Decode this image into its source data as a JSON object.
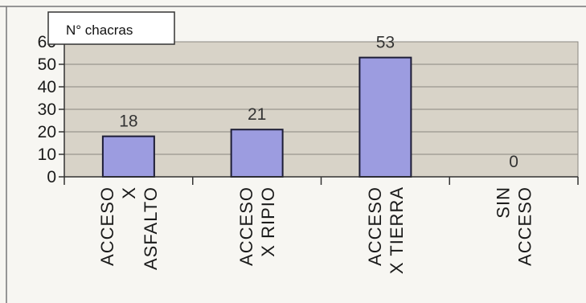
{
  "chart_data": {
    "type": "bar",
    "categories": [
      [
        "ACCESO",
        "X",
        "ASFALTO"
      ],
      [
        "ACCESO",
        "X RIPIO"
      ],
      [
        "ACCESO",
        "X TIERRA"
      ],
      [
        "SIN",
        "ACCESO"
      ]
    ],
    "series": [
      {
        "name": "N° chacras",
        "values": [
          18,
          21,
          53,
          0
        ]
      }
    ],
    "data_labels": [
      "18",
      "21",
      "53",
      "0"
    ],
    "ylim": [
      0,
      60
    ],
    "yticks": [
      "0",
      "10",
      "20",
      "30",
      "40",
      "50",
      "60"
    ],
    "xlabel": "",
    "ylabel": "",
    "grid": true,
    "legend_position": "top-left",
    "colors": {
      "bar": "#9c9ce0",
      "bar_outline": "#1d1d36",
      "plot_background": "#d8d3c8",
      "gridline": "#8a8780",
      "page_background": "#f7f6f2"
    }
  }
}
